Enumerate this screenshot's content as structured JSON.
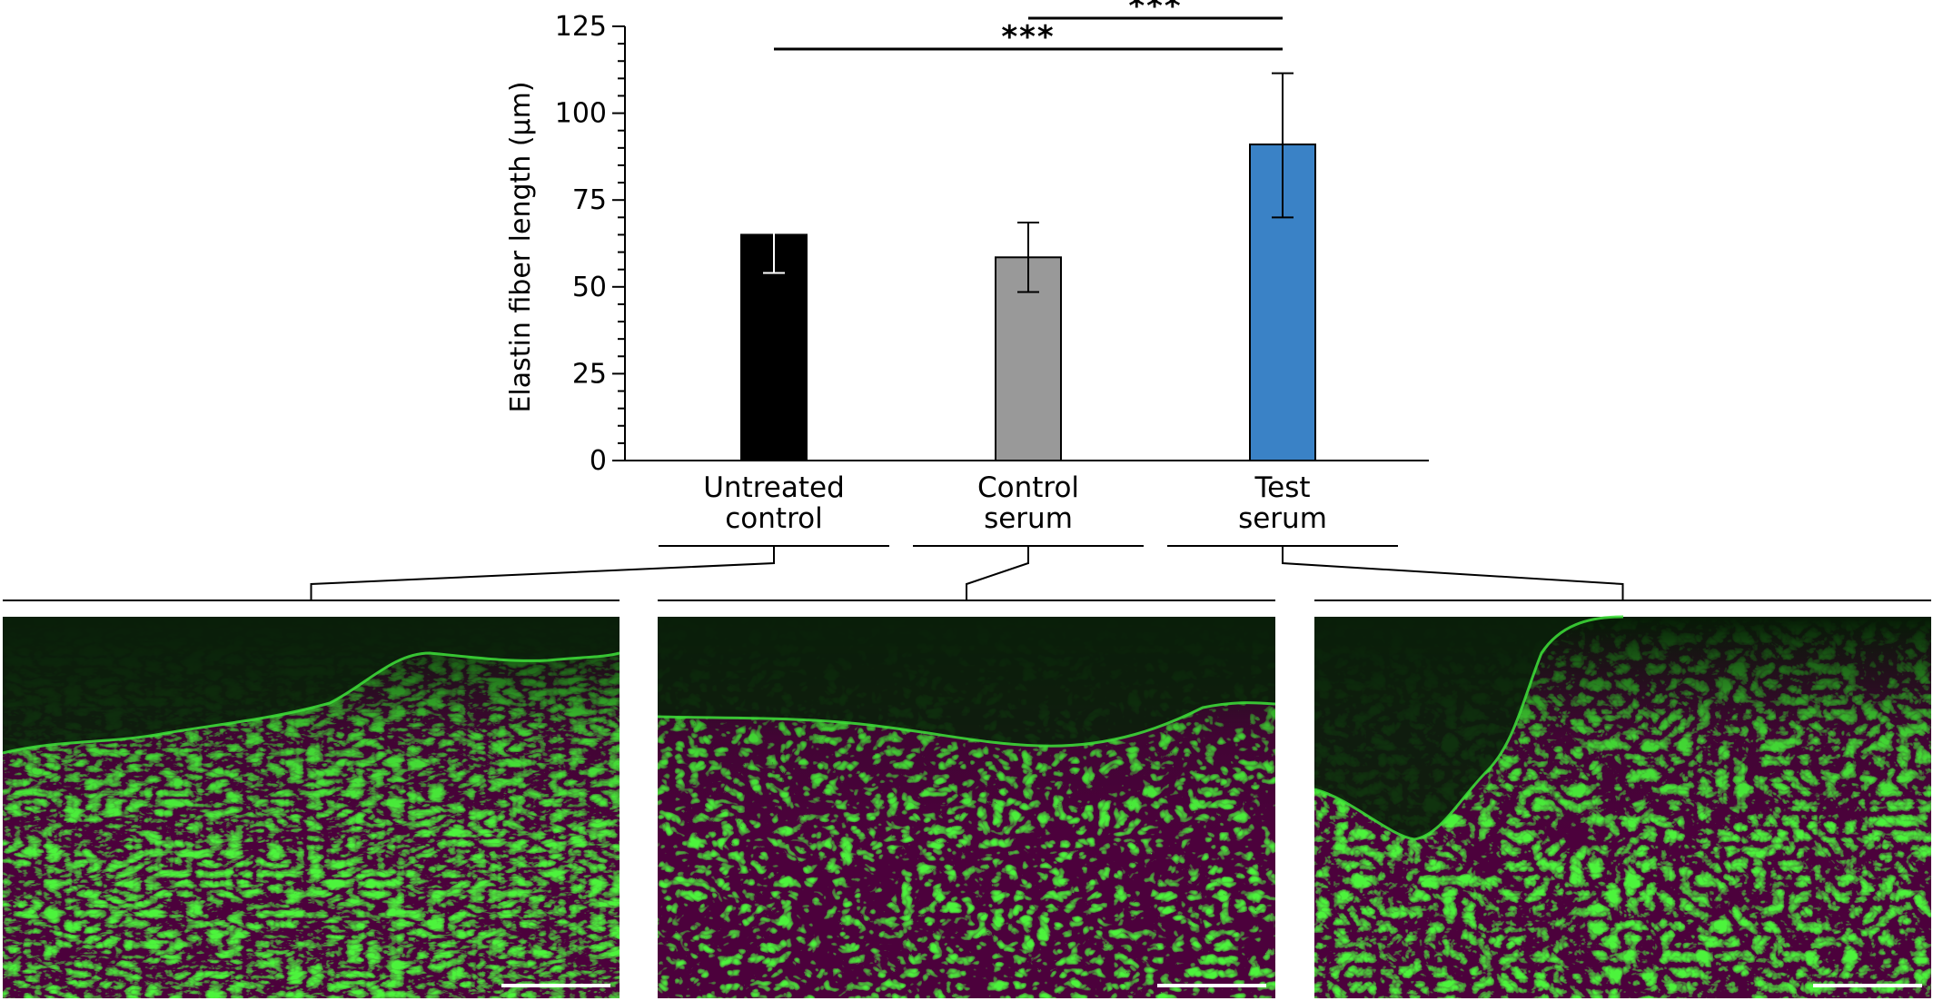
{
  "chart_data": {
    "type": "bar",
    "ylabel": "Elastin fiber length (µm)",
    "ylim": [
      0,
      125
    ],
    "yticks": [
      "0",
      "25",
      "50",
      "75",
      "100",
      "125"
    ],
    "categories": [
      {
        "name": "Untreated control",
        "lines": [
          "Untreated",
          "control"
        ]
      },
      {
        "name": "Control serum",
        "lines": [
          "Control",
          "serum"
        ]
      },
      {
        "name": "Test serum",
        "lines": [
          "Test",
          "serum"
        ]
      }
    ],
    "values": [
      65,
      58.5,
      91
    ],
    "error_low": [
      54,
      48.5,
      70
    ],
    "error_high": [
      76,
      68.5,
      111.5
    ],
    "colors": [
      "#000000",
      "#999999",
      "#3a82c6"
    ],
    "error_bar_colors": [
      "#ffffff",
      "#000000",
      "#000000"
    ],
    "significance": [
      {
        "from": 1,
        "to": 2,
        "label": "***"
      },
      {
        "from": 0,
        "to": 2,
        "label": "***"
      }
    ],
    "grid": false
  },
  "micrographs": [
    {
      "condition": "Untreated control",
      "stain_color": "#3ee23a"
    },
    {
      "condition": "Control serum",
      "stain_color": "#3ee23a"
    },
    {
      "condition": "Test serum",
      "stain_color": "#3ee23a"
    }
  ]
}
